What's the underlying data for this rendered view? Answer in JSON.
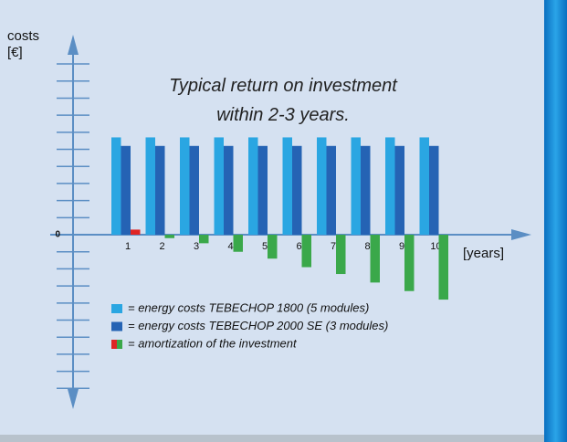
{
  "chart_data": {
    "type": "bar",
    "title": "Typical return on investment within 2-3 years.",
    "y_label": "costs [€]",
    "x_label": "[years]",
    "categories": [
      "1",
      "2",
      "3",
      "4",
      "5",
      "6",
      "7",
      "8",
      "9",
      "10"
    ],
    "series": [
      {
        "name": "= energy costs TEBECHOP 1800 (5 modules)",
        "color": "#2aa6e2",
        "values": [
          5.7,
          5.7,
          5.7,
          5.7,
          5.7,
          5.7,
          5.7,
          5.7,
          5.7,
          5.7
        ]
      },
      {
        "name": "= energy costs TEBECHOP 2000 SE (3 modules)",
        "color": "#2563b4",
        "values": [
          5.2,
          5.2,
          5.2,
          5.2,
          5.2,
          5.2,
          5.2,
          5.2,
          5.2,
          5.2
        ]
      },
      {
        "name": "= amortization of the investment",
        "color": "#3aa84a",
        "positive_color": "#e02424",
        "values": [
          0.3,
          -0.2,
          -0.5,
          -1.0,
          -1.4,
          -1.9,
          -2.3,
          -2.8,
          -3.3,
          -3.8
        ]
      }
    ],
    "ylim": [
      -10,
      11.5
    ],
    "yticks": [
      0
    ],
    "minor_yticks": [
      -9,
      -8,
      -7,
      -6,
      -5,
      -4,
      -3,
      -2,
      -1,
      1,
      2,
      3,
      4,
      5,
      6,
      7,
      8,
      9,
      10
    ]
  }
}
